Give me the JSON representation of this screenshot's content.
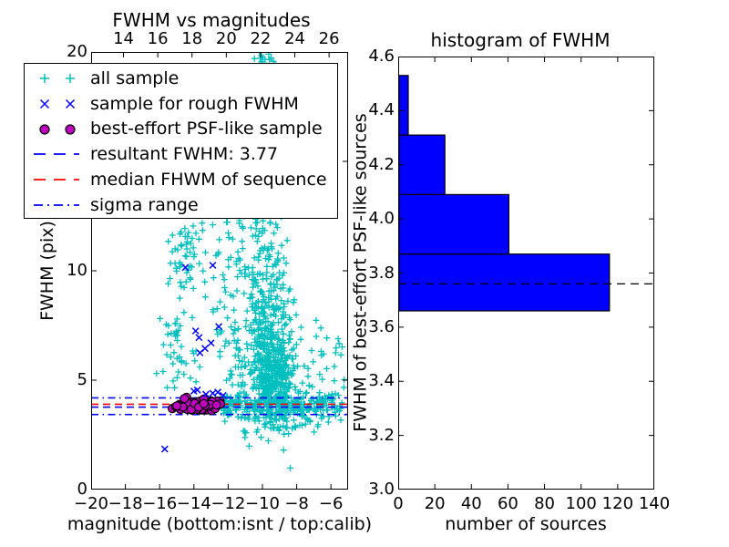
{
  "figure": {
    "background": "#ffffff"
  },
  "colors": {
    "all_sample": "#00bfbf",
    "rough_sample": "#0000ff",
    "psf_sample": "#bf00bf",
    "psf_edge": "#000000",
    "resultant_line": "#0000ff",
    "median_line": "#ff0000",
    "sigma_line": "#0000ff",
    "histogram_bar": "#0000ff",
    "histogram_dash": "#000000",
    "axis": "#000000"
  },
  "legend": {
    "entries": [
      {
        "label": "all sample",
        "marker": "plus",
        "color": "#00bfbf"
      },
      {
        "label": "sample for rough FWHM",
        "marker": "x",
        "color": "#0000ff"
      },
      {
        "label": "best-effort PSF-like sample",
        "marker": "circle",
        "color": "#bf00bf",
        "edge_color": "#000000"
      },
      {
        "label": "resultant FWHM: 3.77",
        "marker": "dashed-line",
        "color": "#0000ff"
      },
      {
        "label": "median FHWM of sequence",
        "marker": "dashed-line",
        "color": "#ff0000"
      },
      {
        "label": "sigma range",
        "marker": "dashdot-line",
        "color": "#0000ff"
      }
    ]
  },
  "chart_data": [
    {
      "type": "scatter",
      "title": "FWHM vs magnitudes",
      "xlabel": "magnitude (bottom:isnt / top:calib)",
      "ylabel": "FWHM (pix)",
      "xlim": [
        -20,
        -5
      ],
      "ylim": [
        0,
        20
      ],
      "x_tick_values": [
        -20,
        -18,
        -16,
        -14,
        -12,
        -10,
        -8,
        -6
      ],
      "x_tick_labels": [
        "−20",
        "−18",
        "−16",
        "−14",
        "−12",
        "−10",
        "−8",
        "−6"
      ],
      "top_tick_values": [
        -18.11,
        -16.11,
        -14.11,
        -12.11,
        -10.11,
        -8.11,
        -6.11
      ],
      "top_tick_labels": [
        "14",
        "16",
        "18",
        "20",
        "22",
        "24",
        "26"
      ],
      "y_tick_values": [
        0,
        5,
        10,
        15,
        20
      ],
      "y_tick_labels": [
        "0",
        "5",
        "10",
        "15",
        "20"
      ],
      "grid": false,
      "legend_position": "upper left",
      "series": {
        "all_sample": {
          "label": "all sample",
          "marker": "plus",
          "color": "#00bfbf",
          "clusters": [
            {
              "n": 430,
              "cx": -9.4,
              "cy": 5.1,
              "sx": 0.62,
              "sy": 1.15
            },
            {
              "n": 170,
              "cx": -9.8,
              "cy": 8.3,
              "sx": 0.8,
              "sy": 1.4
            },
            {
              "n": 90,
              "cx": -10.2,
              "cy": 11.2,
              "sx": 0.9,
              "sy": 1.6
            },
            {
              "n": 60,
              "cx": -9.2,
              "cy": 6.6,
              "sx": 1.35,
              "sy": 1.9
            },
            {
              "n": 150,
              "x0": -12.4,
              "x1": -8.6,
              "cy": 3.85,
              "sy": 0.26
            },
            {
              "n": 120,
              "x0": -8.6,
              "x1": -5.35,
              "cy": 3.85,
              "sy": 0.3
            },
            {
              "n": 30,
              "x0": -11.2,
              "x1": -6.3,
              "y0": 2.5,
              "y1": 3.35
            },
            {
              "n": 48,
              "cx": -14.5,
              "cy": 10.7,
              "sx": 0.5,
              "sy": 0.8
            },
            {
              "n": 26,
              "cx": -15.05,
              "cy": 7.3,
              "sx": 0.3,
              "sy": 1.15
            },
            {
              "n": 22,
              "x0": -16.2,
              "x1": -13.5,
              "y0": 4.6,
              "y1": 6.7
            },
            {
              "n": 28,
              "x0": -13.6,
              "x1": -11.5,
              "y0": 8.0,
              "y1": 12.3
            },
            {
              "n": 34,
              "x0": -12.7,
              "x1": -10.9,
              "y0": 4.7,
              "y1": 7.9
            },
            {
              "n": 14,
              "cx": -9.85,
              "cy": 19.8,
              "sx": 0.26,
              "sy": 0.2
            },
            {
              "n": 20,
              "x0": -7.6,
              "x1": -5.2,
              "y0": 4.4,
              "y1": 6.9
            }
          ]
        },
        "rough_fwhm": {
          "label": "sample for rough FWHM",
          "marker": "x",
          "color": "#0000ff",
          "points": [
            [
              -15.7,
              1.85
            ],
            [
              -14.5,
              10.15
            ],
            [
              -12.9,
              10.25
            ],
            [
              -13.9,
              7.25
            ],
            [
              -12.55,
              7.45
            ],
            [
              -13.0,
              6.7
            ],
            [
              -13.7,
              6.95
            ],
            [
              -13.65,
              6.25
            ],
            [
              -13.35,
              6.45
            ],
            [
              -14.0,
              4.5
            ],
            [
              -13.8,
              4.55
            ],
            [
              -12.9,
              4.4
            ],
            [
              -12.6,
              4.45
            ],
            [
              -13.3,
              4.35
            ],
            [
              -12.3,
              4.3
            ]
          ]
        },
        "psf_like": {
          "label": "best-effort PSF-like sample",
          "marker": "circle",
          "color": "#bf00bf",
          "edge_color": "#000000",
          "cluster": {
            "n": 74,
            "cx": -13.8,
            "cy": 3.88,
            "sx": 0.75,
            "sy": 0.17,
            "xmin": -15.3,
            "xmax": -12.42,
            "ymin": 3.5,
            "ymax": 4.3
          }
        }
      },
      "lines": [
        {
          "name": "resultant FWHM",
          "y": 3.77,
          "color": "#0000ff",
          "style": "dashed"
        },
        {
          "name": "median FHWM of sequence",
          "y": 3.9,
          "color": "#ff0000",
          "style": "dashed"
        },
        {
          "name": "sigma range upper",
          "y": 4.19,
          "color": "#0000ff",
          "style": "dashdot"
        },
        {
          "name": "sigma range lower",
          "y": 3.43,
          "color": "#0000ff",
          "style": "dashdot"
        }
      ]
    },
    {
      "type": "bar",
      "orientation": "horizontal",
      "title": "histogram of FWHM",
      "xlabel": "number of sources",
      "ylabel": "FWHM of best-effort PSF-like sources",
      "xlim": [
        0,
        140
      ],
      "ylim": [
        3.0,
        4.6
      ],
      "x_tick_values": [
        0,
        20,
        40,
        60,
        80,
        100,
        120,
        140
      ],
      "x_tick_labels": [
        "0",
        "20",
        "40",
        "60",
        "80",
        "100",
        "120",
        "140"
      ],
      "y_tick_values": [
        3.0,
        3.2,
        3.4,
        3.6,
        3.8,
        4.0,
        4.2,
        4.4,
        4.6
      ],
      "y_tick_labels": [
        "3.0",
        "3.2",
        "3.4",
        "3.6",
        "3.8",
        "4.0",
        "4.2",
        "4.4",
        "4.6"
      ],
      "bin_edges": [
        3.66,
        3.87,
        4.09,
        4.31,
        4.53
      ],
      "counts": [
        115,
        60,
        25,
        5
      ],
      "bar_color": "#0000ff",
      "bar_edge_color": "#000000",
      "dashed_line_y": 3.76,
      "grid": false
    }
  ]
}
